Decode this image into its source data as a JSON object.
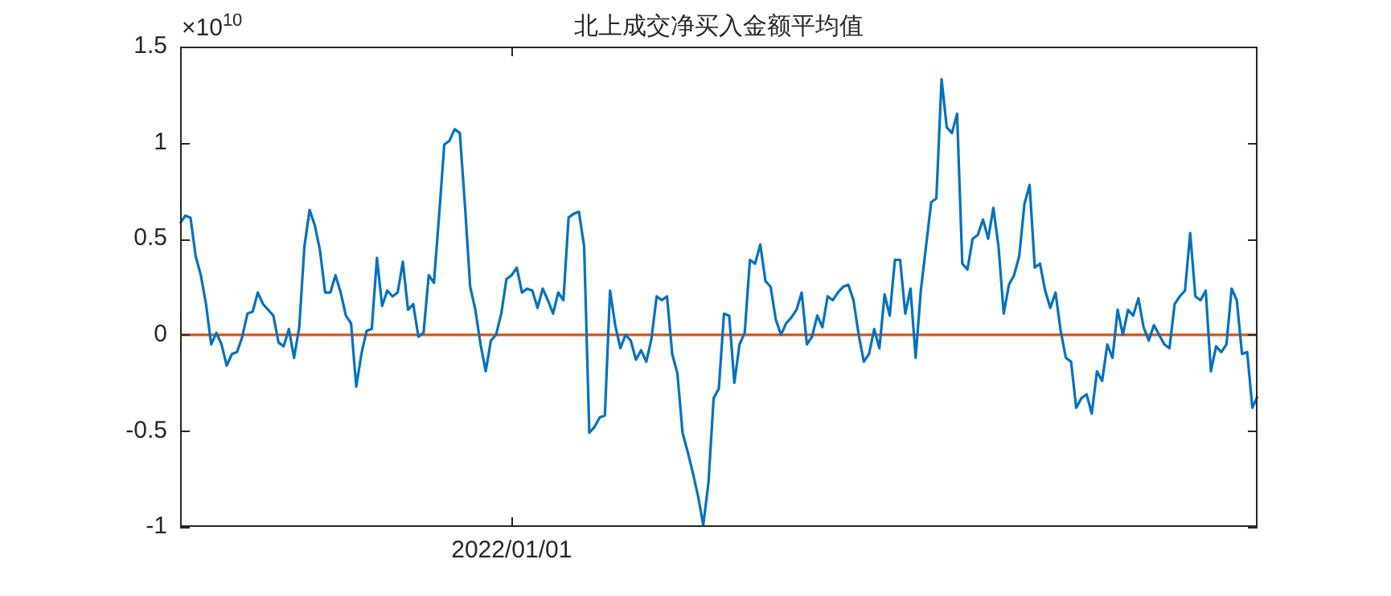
{
  "chart_data": {
    "type": "line",
    "title": "北上成交净买入金额平均值",
    "annotations": [
      "×10$^{10}$"
    ],
    "categories": [
      null,
      null,
      null,
      null,
      null,
      null,
      null,
      null,
      null,
      null,
      null,
      null,
      null,
      null,
      null,
      null,
      null,
      null,
      null,
      null,
      null,
      null,
      null,
      null,
      null,
      null,
      null,
      null,
      null,
      null,
      null,
      null,
      null,
      null,
      null,
      null,
      null,
      null,
      null,
      null,
      null,
      null,
      null,
      null,
      null,
      null,
      null,
      null,
      null,
      null,
      null,
      null,
      null,
      null,
      null,
      null,
      null,
      null,
      null,
      null,
      null,
      null,
      null,
      null,
      "2022/01/01",
      null,
      null,
      null,
      null,
      null,
      null,
      null,
      null,
      null,
      null,
      null,
      null,
      null,
      null,
      null,
      null,
      null,
      null,
      null,
      null,
      null,
      null,
      null,
      null,
      null,
      null,
      null,
      null,
      null,
      null,
      null,
      null,
      null,
      null,
      null,
      null,
      null,
      null,
      null,
      null,
      null,
      null,
      null,
      null,
      null,
      null,
      null,
      null,
      null,
      null,
      null,
      null,
      null,
      null,
      null,
      null,
      null,
      null,
      null,
      null,
      null,
      null,
      null,
      null,
      null,
      null,
      null,
      null,
      null,
      null,
      null,
      null,
      null,
      null,
      null,
      null,
      null,
      null,
      null,
      null,
      null,
      null,
      null,
      null,
      null,
      null,
      null,
      null,
      null,
      null,
      null,
      null,
      null,
      null,
      null,
      null,
      null,
      null,
      null,
      null,
      null,
      null,
      null,
      null,
      null,
      null,
      null,
      null,
      null,
      null,
      null,
      null,
      null,
      null,
      null,
      null,
      null,
      null,
      null,
      null,
      null,
      null,
      null,
      null,
      null,
      null,
      null,
      null,
      null,
      null,
      null,
      null,
      null,
      null,
      null,
      null,
      null,
      null,
      null,
      null,
      null,
      null,
      null,
      null
    ],
    "ylim": [
      -1,
      1.5
    ],
    "yticks": [
      -1,
      -0.5,
      0,
      0.5,
      1,
      1.5
    ],
    "grid": false,
    "legend": false,
    "marker": "none",
    "line_style": "solid",
    "ref_lines": [
      {
        "axis": "y",
        "value": 0,
        "color": "#d95319"
      }
    ],
    "series": [
      {
        "color": "#0072bd",
        "values": [
          0.58,
          0.62,
          0.61,
          0.41,
          0.31,
          0.16,
          -0.05,
          0.01,
          -0.05,
          -0.16,
          -0.1,
          -0.09,
          -0.01,
          0.11,
          0.12,
          0.22,
          0.16,
          0.13,
          0.1,
          -0.04,
          -0.06,
          0.03,
          -0.12,
          0.04,
          0.46,
          0.65,
          0.57,
          0.44,
          0.22,
          0.22,
          0.31,
          0.22,
          0.1,
          0.06,
          -0.27,
          -0.1,
          0.02,
          0.03,
          0.4,
          0.15,
          0.23,
          0.2,
          0.22,
          0.38,
          0.13,
          0.16,
          -0.01,
          0.01,
          0.31,
          0.27,
          0.62,
          0.99,
          1.01,
          1.07,
          1.05,
          0.67,
          0.25,
          0.13,
          -0.05,
          -0.19,
          -0.03,
          0.0,
          0.11,
          0.29,
          0.31,
          0.35,
          0.22,
          0.24,
          0.23,
          0.14,
          0.24,
          0.18,
          0.11,
          0.22,
          0.18,
          0.61,
          0.63,
          0.64,
          0.46,
          -0.51,
          -0.48,
          -0.43,
          -0.42,
          0.23,
          0.05,
          -0.07,
          0.0,
          -0.03,
          -0.13,
          -0.08,
          -0.14,
          -0.02,
          0.2,
          0.18,
          0.2,
          -0.1,
          -0.2,
          -0.51,
          -0.61,
          -0.72,
          -0.84,
          -0.99,
          -0.77,
          -0.33,
          -0.28,
          0.11,
          0.1,
          -0.25,
          -0.05,
          0.01,
          0.39,
          0.37,
          0.47,
          0.28,
          0.25,
          0.08,
          0.0,
          0.06,
          0.09,
          0.13,
          0.22,
          -0.05,
          -0.01,
          0.1,
          0.04,
          0.2,
          0.18,
          0.22,
          0.25,
          0.26,
          0.18,
          0.0,
          -0.14,
          -0.1,
          0.03,
          -0.07,
          0.21,
          0.1,
          0.39,
          0.39,
          0.11,
          0.24,
          -0.12,
          0.23,
          0.46,
          0.69,
          0.71,
          1.33,
          1.08,
          1.05,
          1.15,
          0.37,
          0.34,
          0.5,
          0.52,
          0.6,
          0.5,
          0.66,
          0.46,
          0.11,
          0.26,
          0.31,
          0.41,
          0.68,
          0.78,
          0.35,
          0.37,
          0.23,
          0.14,
          0.22,
          0.02,
          -0.12,
          -0.14,
          -0.38,
          -0.33,
          -0.31,
          -0.41,
          -0.19,
          -0.24,
          -0.05,
          -0.12,
          0.13,
          0.0,
          0.13,
          0.1,
          0.19,
          0.04,
          -0.03,
          0.05,
          0.0,
          -0.05,
          -0.07,
          0.16,
          0.2,
          0.23,
          0.53,
          0.2,
          0.18,
          0.23,
          -0.19,
          -0.06,
          -0.09,
          -0.05,
          0.24,
          0.18,
          -0.1,
          -0.09,
          -0.38,
          -0.32
        ]
      }
    ]
  }
}
